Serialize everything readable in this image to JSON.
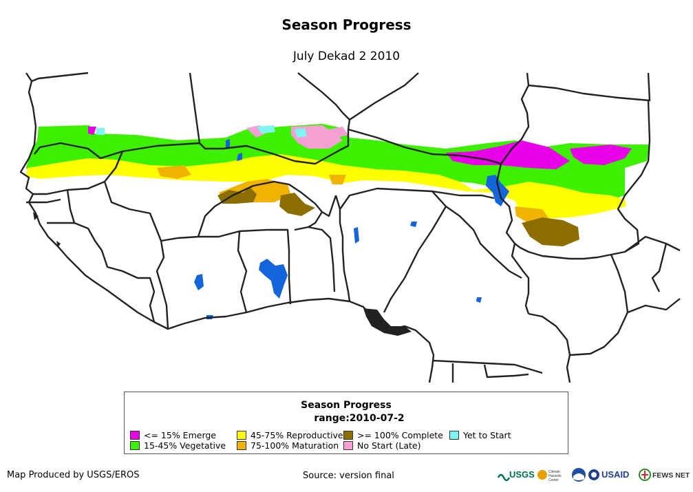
{
  "title": "Season Progress",
  "subtitle": "July Dekad 2 2010",
  "legend": {
    "title": "Season Progress",
    "range": "range:2010-07-2",
    "items": [
      {
        "label": "<= 15% Emerge",
        "color": "#e800e8"
      },
      {
        "label": "15-45% Vegetative",
        "color": "#3cf000"
      },
      {
        "label": "45-75% Reproductive",
        "color": "#ffff00"
      },
      {
        "label": "75-100% Maturation",
        "color": "#f0b400"
      },
      {
        "label": ">= 100% Complete",
        "color": "#8c6e00"
      },
      {
        "label": "No Start (Late)",
        "color": "#f5a0d2"
      },
      {
        "label": "Yet to Start",
        "color": "#7ef5f0"
      }
    ]
  },
  "footer": {
    "producer": "Map Produced by USGS/EROS",
    "source": "Source: version final"
  },
  "logos": [
    {
      "name": "usgs-logo",
      "text": "USGS"
    },
    {
      "name": "chc-logo",
      "text": "Climate Hazards Center"
    },
    {
      "name": "noaa-logo",
      "text": "NOAA"
    },
    {
      "name": "usaid-logo",
      "text": "USAID"
    },
    {
      "name": "fewsnet-logo",
      "text": "FEWS NET"
    }
  ],
  "colors": {
    "water": "#1464dc",
    "border": "#222222"
  }
}
